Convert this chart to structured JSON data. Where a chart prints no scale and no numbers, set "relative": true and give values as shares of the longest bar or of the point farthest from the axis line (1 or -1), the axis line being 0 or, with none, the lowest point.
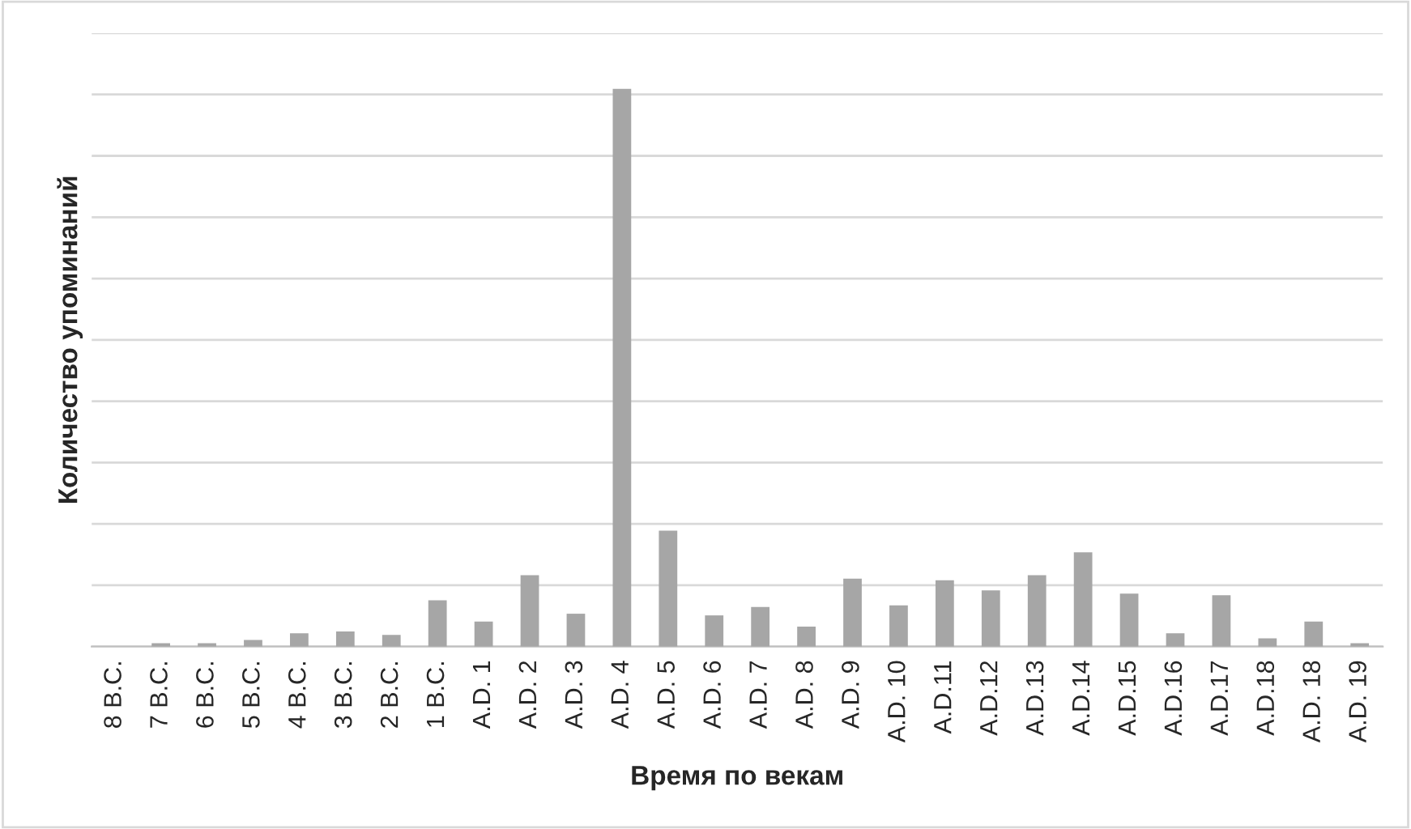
{
  "chart_data": {
    "type": "bar",
    "xlabel": "Время по векам",
    "ylabel": "Количество упоминаний",
    "relative": true,
    "grid": "y",
    "color": "#a6a6a6",
    "categories": [
      "8 B.C.",
      "7 B.C.",
      "6 B.C.",
      "5 B.C.",
      "4 B.C.",
      "3 B.C.",
      "2 B.C.",
      "1 B.C.",
      "A.D. 1",
      "A.D. 2",
      "A.D. 3",
      "A.D. 4",
      "A.D. 5",
      "A.D. 6",
      "A.D. 7",
      "A.D. 8",
      "A.D. 9",
      "A.D. 10",
      "A.D.11",
      "A.D.12",
      "A.D.13",
      "A.D.14",
      "A.D.15",
      "A.D.16",
      "A.D.17",
      "A.D.18",
      "A.D. 18",
      "A.D. 19"
    ],
    "values": [
      0,
      0.006,
      0.006,
      0.012,
      0.024,
      0.027,
      0.021,
      0.083,
      0.045,
      0.128,
      0.059,
      1,
      0.208,
      0.056,
      0.071,
      0.036,
      0.122,
      0.074,
      0.119,
      0.101,
      0.128,
      0.169,
      0.095,
      0.024,
      0.092,
      0.015,
      0.045,
      0.006
    ]
  }
}
